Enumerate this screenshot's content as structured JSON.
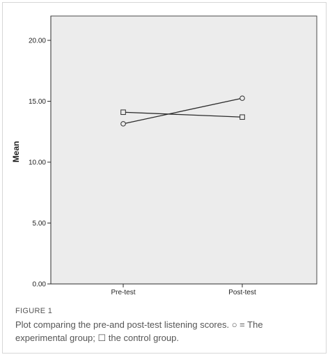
{
  "chart_data": {
    "type": "line",
    "categories": [
      "Pre-test",
      "Post-test"
    ],
    "series": [
      {
        "values": [
          13.15,
          15.25
        ],
        "marker": "circle"
      },
      {
        "values": [
          14.1,
          13.7
        ],
        "marker": "square"
      }
    ],
    "ylabel": "Mean",
    "ylim": [
      0,
      22
    ],
    "y_ticks": [
      "0.00",
      "5.00",
      "10.00",
      "15.00",
      "20.00"
    ],
    "grid": false,
    "legend": "none",
    "colors": {
      "plot_background": "#ececec",
      "line": "#2b2b2b"
    }
  },
  "figure": {
    "label": "FIGURE 1",
    "caption": "Plot comparing the pre-and post-test listening scores. ○ = The experimental group; ☐ the control group."
  }
}
